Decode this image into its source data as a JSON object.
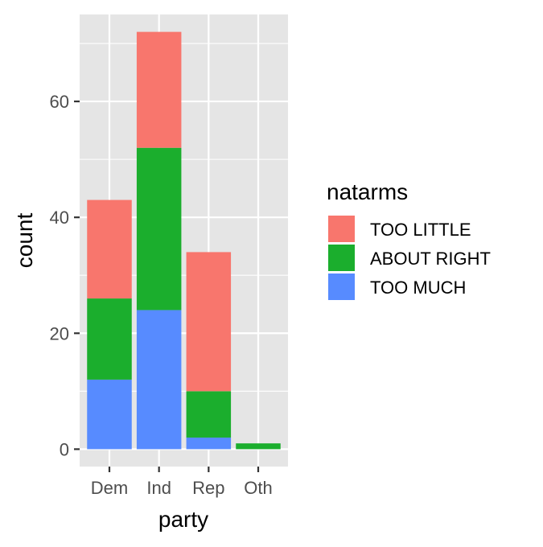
{
  "chart_data": {
    "type": "bar",
    "stacked": true,
    "categories": [
      "Dem",
      "Ind",
      "Rep",
      "Oth"
    ],
    "series": [
      {
        "name": "TOO LITTLE",
        "values": [
          17,
          20,
          24,
          0
        ],
        "color": "#F8766D"
      },
      {
        "name": "ABOUT RIGHT",
        "values": [
          14,
          28,
          8,
          1
        ],
        "color": "#1BAE2D"
      },
      {
        "name": "TOO MUCH",
        "values": [
          12,
          24,
          2,
          0
        ],
        "color": "#578BFF"
      }
    ],
    "stack_order_bottom_to_top": [
      "TOO MUCH",
      "ABOUT RIGHT",
      "TOO LITTLE"
    ],
    "xlabel": "party",
    "ylabel": "count",
    "ylim": [
      -3,
      75
    ],
    "yticks": [
      0,
      20,
      40,
      60
    ],
    "grid": true,
    "panel_background": "#E5E5E5",
    "legend": {
      "title": "natarms",
      "position": "right"
    }
  }
}
